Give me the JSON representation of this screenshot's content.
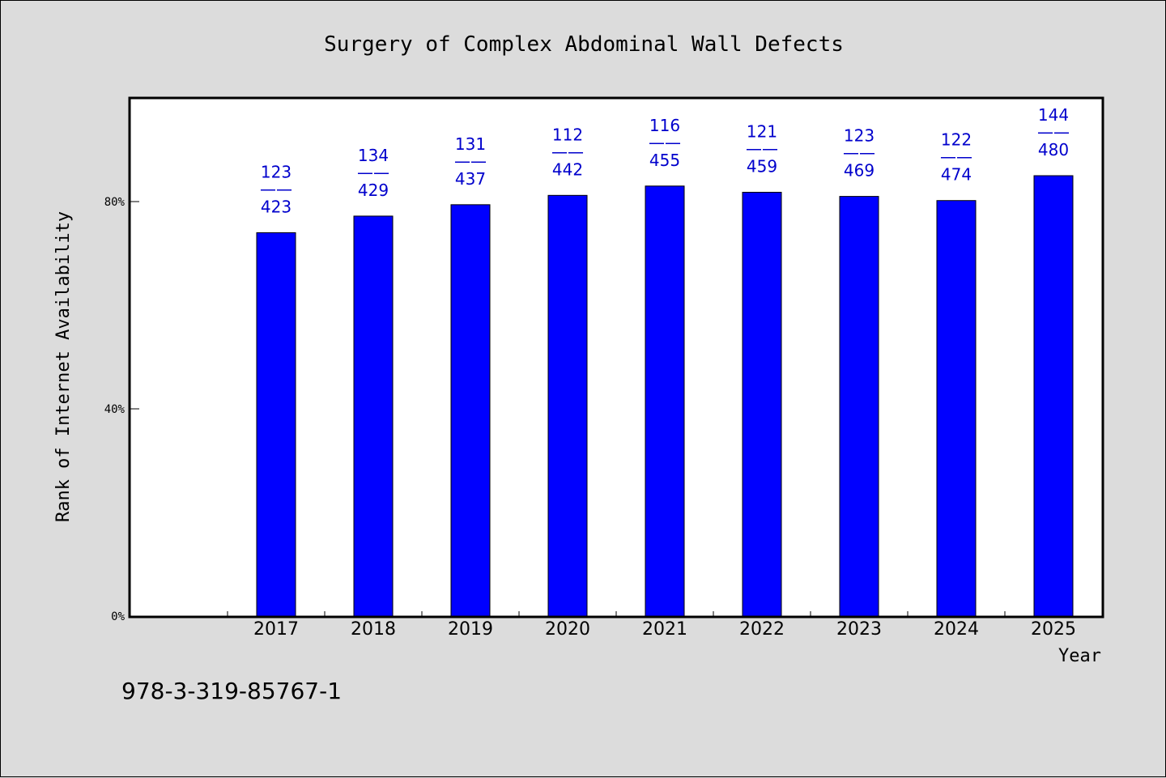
{
  "chart_data": {
    "type": "bar",
    "title": "Surgery of Complex Abdominal Wall Defects",
    "xlabel": "Year",
    "ylabel": "Rank of Internet Availability",
    "categories": [
      "2017",
      "2018",
      "2019",
      "2020",
      "2021",
      "2022",
      "2023",
      "2024",
      "2025"
    ],
    "values": [
      0.74,
      0.772,
      0.794,
      0.812,
      0.83,
      0.818,
      0.81,
      0.802,
      0.85
    ],
    "bar_labels": [
      {
        "top": "123",
        "sep": "——",
        "bottom": "423"
      },
      {
        "top": "134",
        "sep": "——",
        "bottom": "429"
      },
      {
        "top": "131",
        "sep": "——",
        "bottom": "437"
      },
      {
        "top": "112",
        "sep": "——",
        "bottom": "442"
      },
      {
        "top": "116",
        "sep": "——",
        "bottom": "455"
      },
      {
        "top": "121",
        "sep": "——",
        "bottom": "459"
      },
      {
        "top": "123",
        "sep": "——",
        "bottom": "469"
      },
      {
        "top": "122",
        "sep": "——",
        "bottom": "474"
      },
      {
        "top": "144",
        "sep": "——",
        "bottom": "480"
      }
    ],
    "ylim": [
      0,
      1.0
    ],
    "yticks": [
      {
        "value": 0,
        "label": "0%"
      },
      {
        "value": 0.4,
        "label": "40%"
      },
      {
        "value": 0.8,
        "label": "80%"
      }
    ],
    "bar_color": "#0000ff",
    "label_color": "#0000cc",
    "grid": false
  },
  "footer": {
    "isbn": "978-3-319-85767-1"
  }
}
